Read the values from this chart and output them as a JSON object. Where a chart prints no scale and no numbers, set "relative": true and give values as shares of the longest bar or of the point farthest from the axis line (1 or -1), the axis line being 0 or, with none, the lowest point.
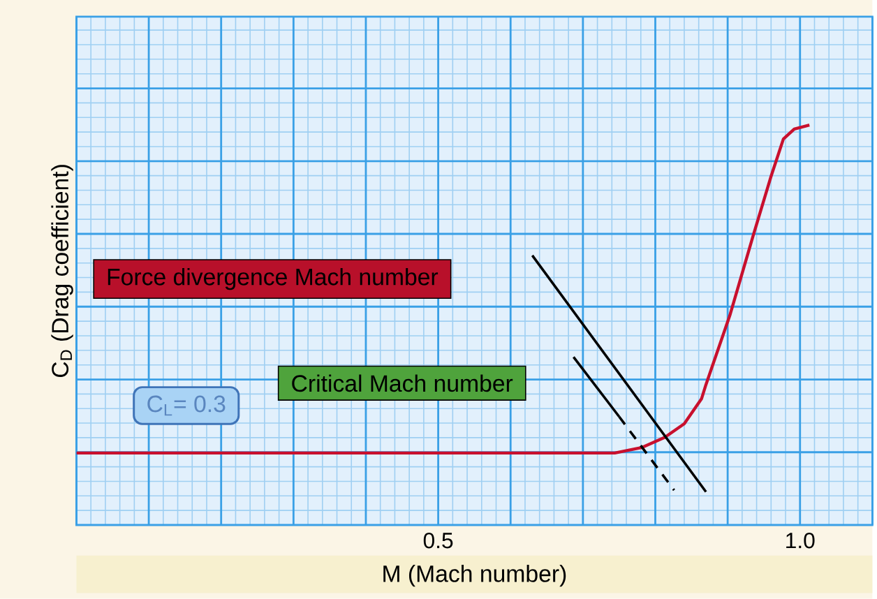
{
  "chart_data": {
    "type": "line",
    "relative": true,
    "xlabel": "M (Mach number)",
    "ylabel": "C$_{D}$ (Drag coefficient)",
    "xlim": [
      0,
      1.1
    ],
    "xticks": [
      {
        "value": 0,
        "label": null
      },
      {
        "value": 0.02,
        "label": null
      },
      {
        "value": 0.04,
        "label": null
      },
      {
        "value": 0.06,
        "label": null
      },
      {
        "value": 0.08,
        "label": null
      },
      {
        "value": 0.1,
        "label": null
      },
      {
        "value": 0.12,
        "label": null
      },
      {
        "value": 0.14,
        "label": null
      },
      {
        "value": 0.16,
        "label": null
      },
      {
        "value": 0.18,
        "label": null
      },
      {
        "value": 0.2,
        "label": null
      },
      {
        "value": 0.22,
        "label": null
      },
      {
        "value": 0.24,
        "label": null
      },
      {
        "value": 0.26,
        "label": null
      },
      {
        "value": 0.28,
        "label": null
      },
      {
        "value": 0.3,
        "label": null
      },
      {
        "value": 0.32,
        "label": null
      },
      {
        "value": 0.34,
        "label": null
      },
      {
        "value": 0.36,
        "label": null
      },
      {
        "value": 0.38,
        "label": null
      },
      {
        "value": 0.4,
        "label": null
      },
      {
        "value": 0.42,
        "label": null
      },
      {
        "value": 0.44,
        "label": null
      },
      {
        "value": 0.46,
        "label": null
      },
      {
        "value": 0.48,
        "label": null
      },
      0.5,
      {
        "value": 0.52,
        "label": null
      },
      {
        "value": 0.54,
        "label": null
      },
      {
        "value": 0.56,
        "label": null
      },
      {
        "value": 0.58,
        "label": null
      },
      {
        "value": 0.6,
        "label": null
      },
      {
        "value": 0.62,
        "label": null
      },
      {
        "value": 0.64,
        "label": null
      },
      {
        "value": 0.66,
        "label": null
      },
      {
        "value": 0.68,
        "label": null
      },
      {
        "value": 0.7,
        "label": null
      },
      {
        "value": 0.72,
        "label": null
      },
      {
        "value": 0.74,
        "label": null
      },
      {
        "value": 0.76,
        "label": null
      },
      {
        "value": 0.78,
        "label": null
      },
      {
        "value": 0.8,
        "label": null
      },
      {
        "value": 0.82,
        "label": null
      },
      {
        "value": 0.84,
        "label": null
      },
      {
        "value": 0.86,
        "label": null
      },
      {
        "value": 0.88,
        "label": null
      },
      {
        "value": 0.9,
        "label": null
      },
      {
        "value": 0.92,
        "label": null
      },
      {
        "value": 0.94,
        "label": null
      },
      {
        "value": 0.96,
        "label": null
      },
      {
        "value": 0.98,
        "label": null
      },
      {
        "value": 1.0,
        "label": "1.0"
      },
      {
        "value": 1.02,
        "label": null
      },
      {
        "value": 1.04,
        "label": null
      },
      {
        "value": 1.06,
        "label": null
      },
      {
        "value": 1.08,
        "label": null
      },
      {
        "value": 1.1,
        "label": null
      }
    ],
    "grid": true,
    "annotations": [
      "Force divergence Mach number",
      "Critical Mach number",
      "C$_{L}$= 0.3"
    ],
    "series": [
      {
        "color": "#c8102e",
        "x": [
          0,
          0.744,
          0.782,
          0.813,
          0.84,
          0.864,
          0.87,
          0.903,
          0.935,
          0.96,
          0.977,
          0.992,
          1.013
        ],
        "values": [
          0.18,
          0.18,
          0.194,
          0.219,
          0.253,
          0.316,
          0.351,
          0.524,
          0.722,
          0.872,
          0.965,
          0.99,
          1.0
        ]
      },
      {
        "color": "#000000",
        "x": [
          0.63,
          0.87
        ],
        "values": [
          0.674,
          0.083
        ]
      },
      {
        "color": "#000000",
        "x": [
          0.687,
          0.75
        ],
        "values": [
          0.42,
          0.271
        ]
      },
      {
        "color": "#000000",
        "line_style": "dashed",
        "x": [
          0.75,
          0.826
        ],
        "values": [
          0.271,
          0.087
        ]
      }
    ]
  }
}
